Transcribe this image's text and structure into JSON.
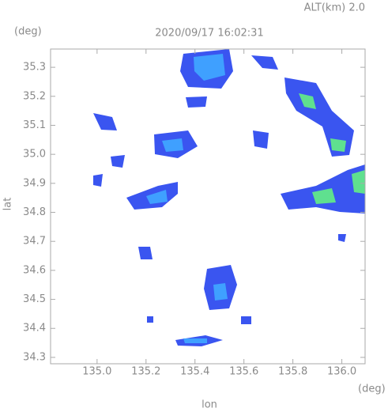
{
  "chart_data": {
    "type": "radar-map",
    "title": "2020/09/17 16:02:31",
    "altitude_label": "ALT(km) 2.0",
    "y_unit": "(deg)",
    "x_unit": "(deg)",
    "x_label": "lon",
    "y_label": "lat",
    "xlim": [
      134.81,
      136.095
    ],
    "ylim": [
      34.278,
      35.363
    ],
    "xticks": [
      {
        "value": 135,
        "label": "135.0"
      },
      135.2,
      135.4,
      135.6,
      135.8,
      {
        "value": 136,
        "label": "136.0"
      }
    ],
    "yticks": [
      34.3,
      34.4,
      34.5,
      34.6,
      34.7,
      34.8,
      34.9,
      {
        "value": 35,
        "label": "35.0"
      },
      35.1,
      35.2,
      35.3
    ]
  }
}
